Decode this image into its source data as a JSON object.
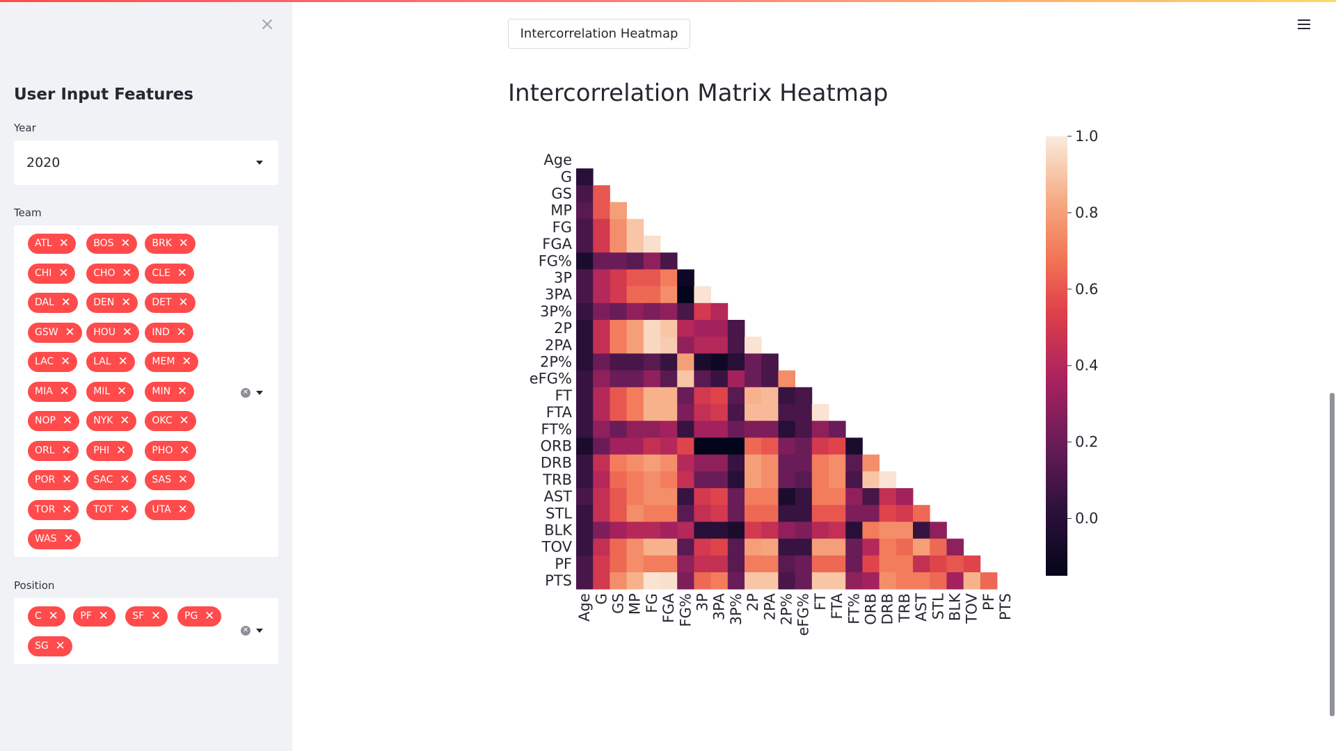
{
  "sidebar": {
    "title": "User Input Features",
    "year": {
      "label": "Year",
      "value": "2020"
    },
    "team": {
      "label": "Team",
      "tags": [
        [
          "ATL",
          "BOS",
          "BRK"
        ],
        [
          "CHI",
          "CHO",
          "CLE"
        ],
        [
          "DAL",
          "DEN",
          "DET"
        ],
        [
          "GSW",
          "HOU",
          "IND"
        ],
        [
          "LAC",
          "LAL",
          "MEM"
        ],
        [
          "MIA",
          "MIL",
          "MIN"
        ],
        [
          "NOP",
          "NYK",
          "OKC"
        ],
        [
          "ORL",
          "PHI",
          "PHO"
        ],
        [
          "POR",
          "SAC",
          "SAS"
        ],
        [
          "TOR",
          "TOT",
          "UTA"
        ],
        [
          "WAS"
        ]
      ]
    },
    "position": {
      "label": "Position",
      "tags": [
        [
          "C",
          "PF",
          "SF",
          "PG"
        ],
        [
          "SG"
        ]
      ]
    }
  },
  "main": {
    "tab_label": "Intercorrelation Heatmap",
    "title": "Intercorrelation Matrix Heatmap"
  },
  "icons": {
    "close": "close-icon",
    "menu": "hamburger-menu-icon",
    "tag_remove": "x-icon",
    "dropdown": "chevron-down-icon"
  },
  "colors": {
    "accent": "#ff4b4b",
    "sidebar_bg": "#f0f2f6"
  },
  "chart_data": {
    "type": "heatmap",
    "title": "",
    "labels": [
      "Age",
      "G",
      "GS",
      "MP",
      "FG",
      "FGA",
      "FG%",
      "3P",
      "3PA",
      "3P%",
      "2P",
      "2PA",
      "2P%",
      "eFG%",
      "FT",
      "FTA",
      "FT%",
      "ORB",
      "DRB",
      "TRB",
      "AST",
      "STL",
      "BLK",
      "TOV",
      "PF",
      "PTS"
    ],
    "colorbar": {
      "range": [
        -0.15,
        1.0
      ],
      "ticks": [
        "1.0",
        "0.8",
        "0.6",
        "0.4",
        "0.2",
        "0.0"
      ],
      "colormap": "rocket"
    },
    "mask": "upper-triangle",
    "values": [
      [],
      [
        0.0
      ],
      [
        0.1,
        0.6
      ],
      [
        0.15,
        0.6,
        0.8
      ],
      [
        0.1,
        0.5,
        0.75,
        0.9
      ],
      [
        0.1,
        0.5,
        0.75,
        0.9,
        0.97
      ],
      [
        -0.05,
        0.2,
        0.2,
        0.15,
        0.3,
        0.1
      ],
      [
        0.1,
        0.4,
        0.5,
        0.6,
        0.6,
        0.7,
        -0.1
      ],
      [
        0.1,
        0.4,
        0.5,
        0.65,
        0.65,
        0.75,
        -0.15,
        0.98
      ],
      [
        0.05,
        0.25,
        0.2,
        0.3,
        0.25,
        0.3,
        0.1,
        0.5,
        0.4
      ],
      [
        0.0,
        0.45,
        0.7,
        0.8,
        0.95,
        0.9,
        0.4,
        0.35,
        0.35,
        0.1
      ],
      [
        0.0,
        0.45,
        0.7,
        0.8,
        0.95,
        0.92,
        0.3,
        0.4,
        0.4,
        0.1,
        0.98
      ],
      [
        0.0,
        0.2,
        0.1,
        0.1,
        0.15,
        0.05,
        0.8,
        -0.05,
        -0.1,
        0.0,
        0.2,
        0.1
      ],
      [
        0.05,
        0.3,
        0.2,
        0.2,
        0.3,
        0.15,
        0.9,
        0.15,
        0.05,
        0.35,
        0.2,
        0.1,
        0.75
      ],
      [
        0.05,
        0.4,
        0.6,
        0.7,
        0.85,
        0.85,
        0.2,
        0.5,
        0.55,
        0.15,
        0.85,
        0.87,
        0.05,
        0.1
      ],
      [
        0.05,
        0.4,
        0.6,
        0.7,
        0.85,
        0.85,
        0.25,
        0.45,
        0.5,
        0.1,
        0.87,
        0.87,
        0.1,
        0.1,
        0.98
      ],
      [
        0.05,
        0.3,
        0.2,
        0.3,
        0.3,
        0.35,
        0.05,
        0.35,
        0.35,
        0.2,
        0.25,
        0.25,
        0.0,
        0.1,
        0.3,
        0.2
      ],
      [
        -0.05,
        0.2,
        0.35,
        0.35,
        0.45,
        0.4,
        0.55,
        -0.15,
        -0.15,
        -0.15,
        0.65,
        0.6,
        0.25,
        0.2,
        0.5,
        0.55,
        -0.05
      ],
      [
        0.05,
        0.45,
        0.7,
        0.75,
        0.8,
        0.75,
        0.4,
        0.3,
        0.3,
        0.05,
        0.8,
        0.75,
        0.2,
        0.2,
        0.7,
        0.75,
        0.15,
        0.75
      ],
      [
        0.05,
        0.4,
        0.65,
        0.7,
        0.75,
        0.7,
        0.45,
        0.2,
        0.2,
        0.0,
        0.8,
        0.75,
        0.2,
        0.15,
        0.7,
        0.75,
        0.1,
        0.9,
        0.98
      ],
      [
        0.1,
        0.45,
        0.6,
        0.7,
        0.75,
        0.75,
        0.05,
        0.5,
        0.55,
        0.2,
        0.7,
        0.7,
        -0.05,
        0.05,
        0.7,
        0.7,
        0.3,
        0.1,
        0.45,
        0.35
      ],
      [
        0.05,
        0.45,
        0.6,
        0.75,
        0.7,
        0.7,
        0.15,
        0.45,
        0.5,
        0.2,
        0.65,
        0.65,
        0.05,
        0.05,
        0.6,
        0.6,
        0.25,
        0.25,
        0.55,
        0.5,
        0.65
      ],
      [
        0.05,
        0.25,
        0.35,
        0.4,
        0.4,
        0.35,
        0.4,
        0.0,
        0.0,
        -0.05,
        0.5,
        0.45,
        0.3,
        0.25,
        0.4,
        0.45,
        0.0,
        0.7,
        0.75,
        0.75,
        0.05,
        0.3
      ],
      [
        0.05,
        0.45,
        0.65,
        0.75,
        0.85,
        0.85,
        0.15,
        0.5,
        0.55,
        0.15,
        0.8,
        0.82,
        0.05,
        0.05,
        0.8,
        0.8,
        0.2,
        0.4,
        0.7,
        0.65,
        0.8,
        0.65,
        0.3
      ],
      [
        0.1,
        0.5,
        0.65,
        0.75,
        0.7,
        0.7,
        0.3,
        0.45,
        0.45,
        0.15,
        0.7,
        0.7,
        0.15,
        0.2,
        0.65,
        0.65,
        0.2,
        0.55,
        0.7,
        0.7,
        0.45,
        0.55,
        0.6,
        0.55
      ],
      [
        0.1,
        0.5,
        0.75,
        0.85,
        0.98,
        0.97,
        0.25,
        0.65,
        0.7,
        0.2,
        0.9,
        0.9,
        0.1,
        0.2,
        0.9,
        0.9,
        0.3,
        0.35,
        0.75,
        0.7,
        0.7,
        0.65,
        0.35,
        0.85,
        0.65
      ]
    ]
  }
}
